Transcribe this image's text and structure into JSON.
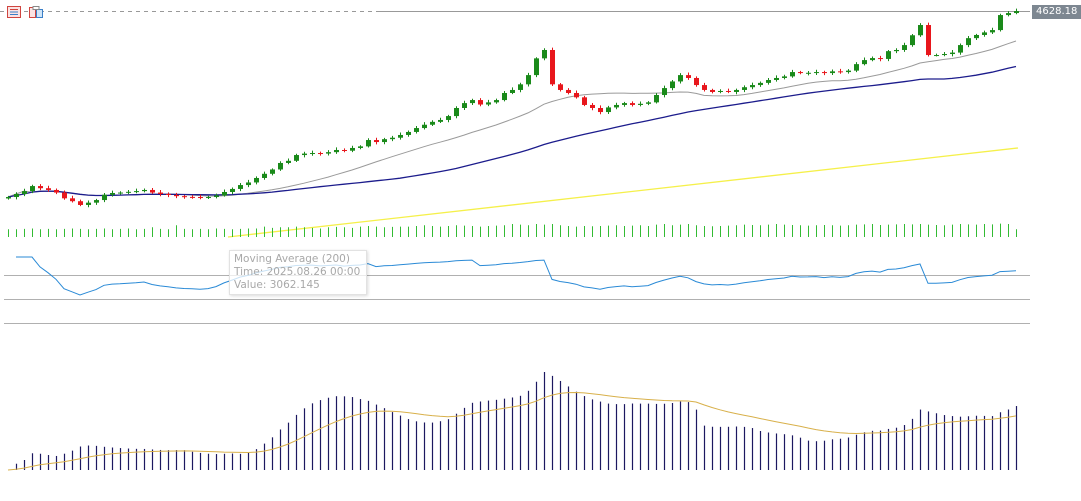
{
  "toolbar": {
    "icons": [
      "list-icon",
      "templates-icon"
    ]
  },
  "price_label": "4628.18",
  "tooltip": {
    "title": "Moving Average (200)",
    "time": "Time: 2025.08.26 00:00",
    "value": "Value: 3062.145"
  },
  "colors": {
    "bull": "#1a8a1a",
    "bear": "#e8161c",
    "ma_fast": "#9a9a9a",
    "ma_slow": "#1c1c8c",
    "ma_200": "#f5f04a",
    "volume": "#33bb33",
    "oscillator": "#2a8ad6",
    "histogram": "#1c1860",
    "signal": "#d8b04a",
    "level": "#b0b0b0"
  },
  "chart_data": {
    "type": "candlestick",
    "last_price": 4628.18,
    "closes": [
      3339,
      3360,
      3380,
      3415,
      3400,
      3388,
      3370,
      3330,
      3310,
      3284,
      3300,
      3318,
      3355,
      3367,
      3370,
      3375,
      3380,
      3388,
      3370,
      3360,
      3353,
      3345,
      3340,
      3339,
      3335,
      3339,
      3350,
      3374,
      3395,
      3422,
      3440,
      3471,
      3500,
      3530,
      3575,
      3590,
      3630,
      3640,
      3644,
      3640,
      3650,
      3665,
      3660,
      3679,
      3690,
      3734,
      3720,
      3740,
      3750,
      3769,
      3790,
      3817,
      3840,
      3860,
      3873,
      3900,
      3956,
      3990,
      4011,
      3980,
      3995,
      4011,
      4060,
      4081,
      4120,
      4184,
      4300,
      4358,
      4120,
      4081,
      4060,
      4030,
      3977,
      3956,
      3928,
      3960,
      3977,
      3990,
      3977,
      3985,
      3995,
      4046,
      4094,
      4140,
      4184,
      4164,
      4115,
      4081,
      4067,
      4074,
      4067,
      4081,
      4100,
      4115,
      4130,
      4150,
      4164,
      4175,
      4205,
      4198,
      4200,
      4205,
      4198,
      4210,
      4205,
      4215,
      4260,
      4288,
      4302,
      4296,
      4350,
      4358,
      4392,
      4460,
      4531,
      4323,
      4323,
      4330,
      4340,
      4392,
      4440,
      4462,
      4480,
      4496,
      4600,
      4614,
      4628
    ],
    "volumes": [
      120,
      120,
      125,
      130,
      120,
      125,
      120,
      125,
      130,
      125,
      120,
      125,
      130,
      120,
      125,
      130,
      120,
      125,
      150,
      125,
      120,
      180,
      125,
      120,
      125,
      120,
      130,
      125,
      120,
      125,
      130,
      130,
      160,
      140,
      150,
      150,
      160,
      150,
      140,
      130,
      150,
      155,
      150,
      140,
      160,
      170,
      160,
      150,
      155,
      160,
      160,
      170,
      180,
      170,
      160,
      170,
      180,
      175,
      170,
      160,
      170,
      175,
      180,
      200,
      190,
      180,
      200,
      190,
      200,
      180,
      170,
      160,
      170,
      165,
      170,
      175,
      180,
      170,
      175,
      180,
      170,
      190,
      200,
      180,
      190,
      200,
      180,
      170,
      165,
      170,
      175,
      180,
      190,
      185,
      180,
      190,
      200,
      190,
      185,
      180,
      175,
      180,
      185,
      180,
      175,
      180,
      190,
      195,
      200,
      185,
      190,
      195,
      200,
      195,
      200,
      190,
      185,
      180,
      190,
      200,
      195,
      190,
      200,
      195,
      205,
      200,
      120
    ],
    "ma_200": {
      "series_name": "Moving Average (200)",
      "start_time": "2025.08.26 00:00",
      "start_value": 3062.145,
      "end_value": 3679
    },
    "oscillator_levels": [
      70,
      30
    ]
  }
}
